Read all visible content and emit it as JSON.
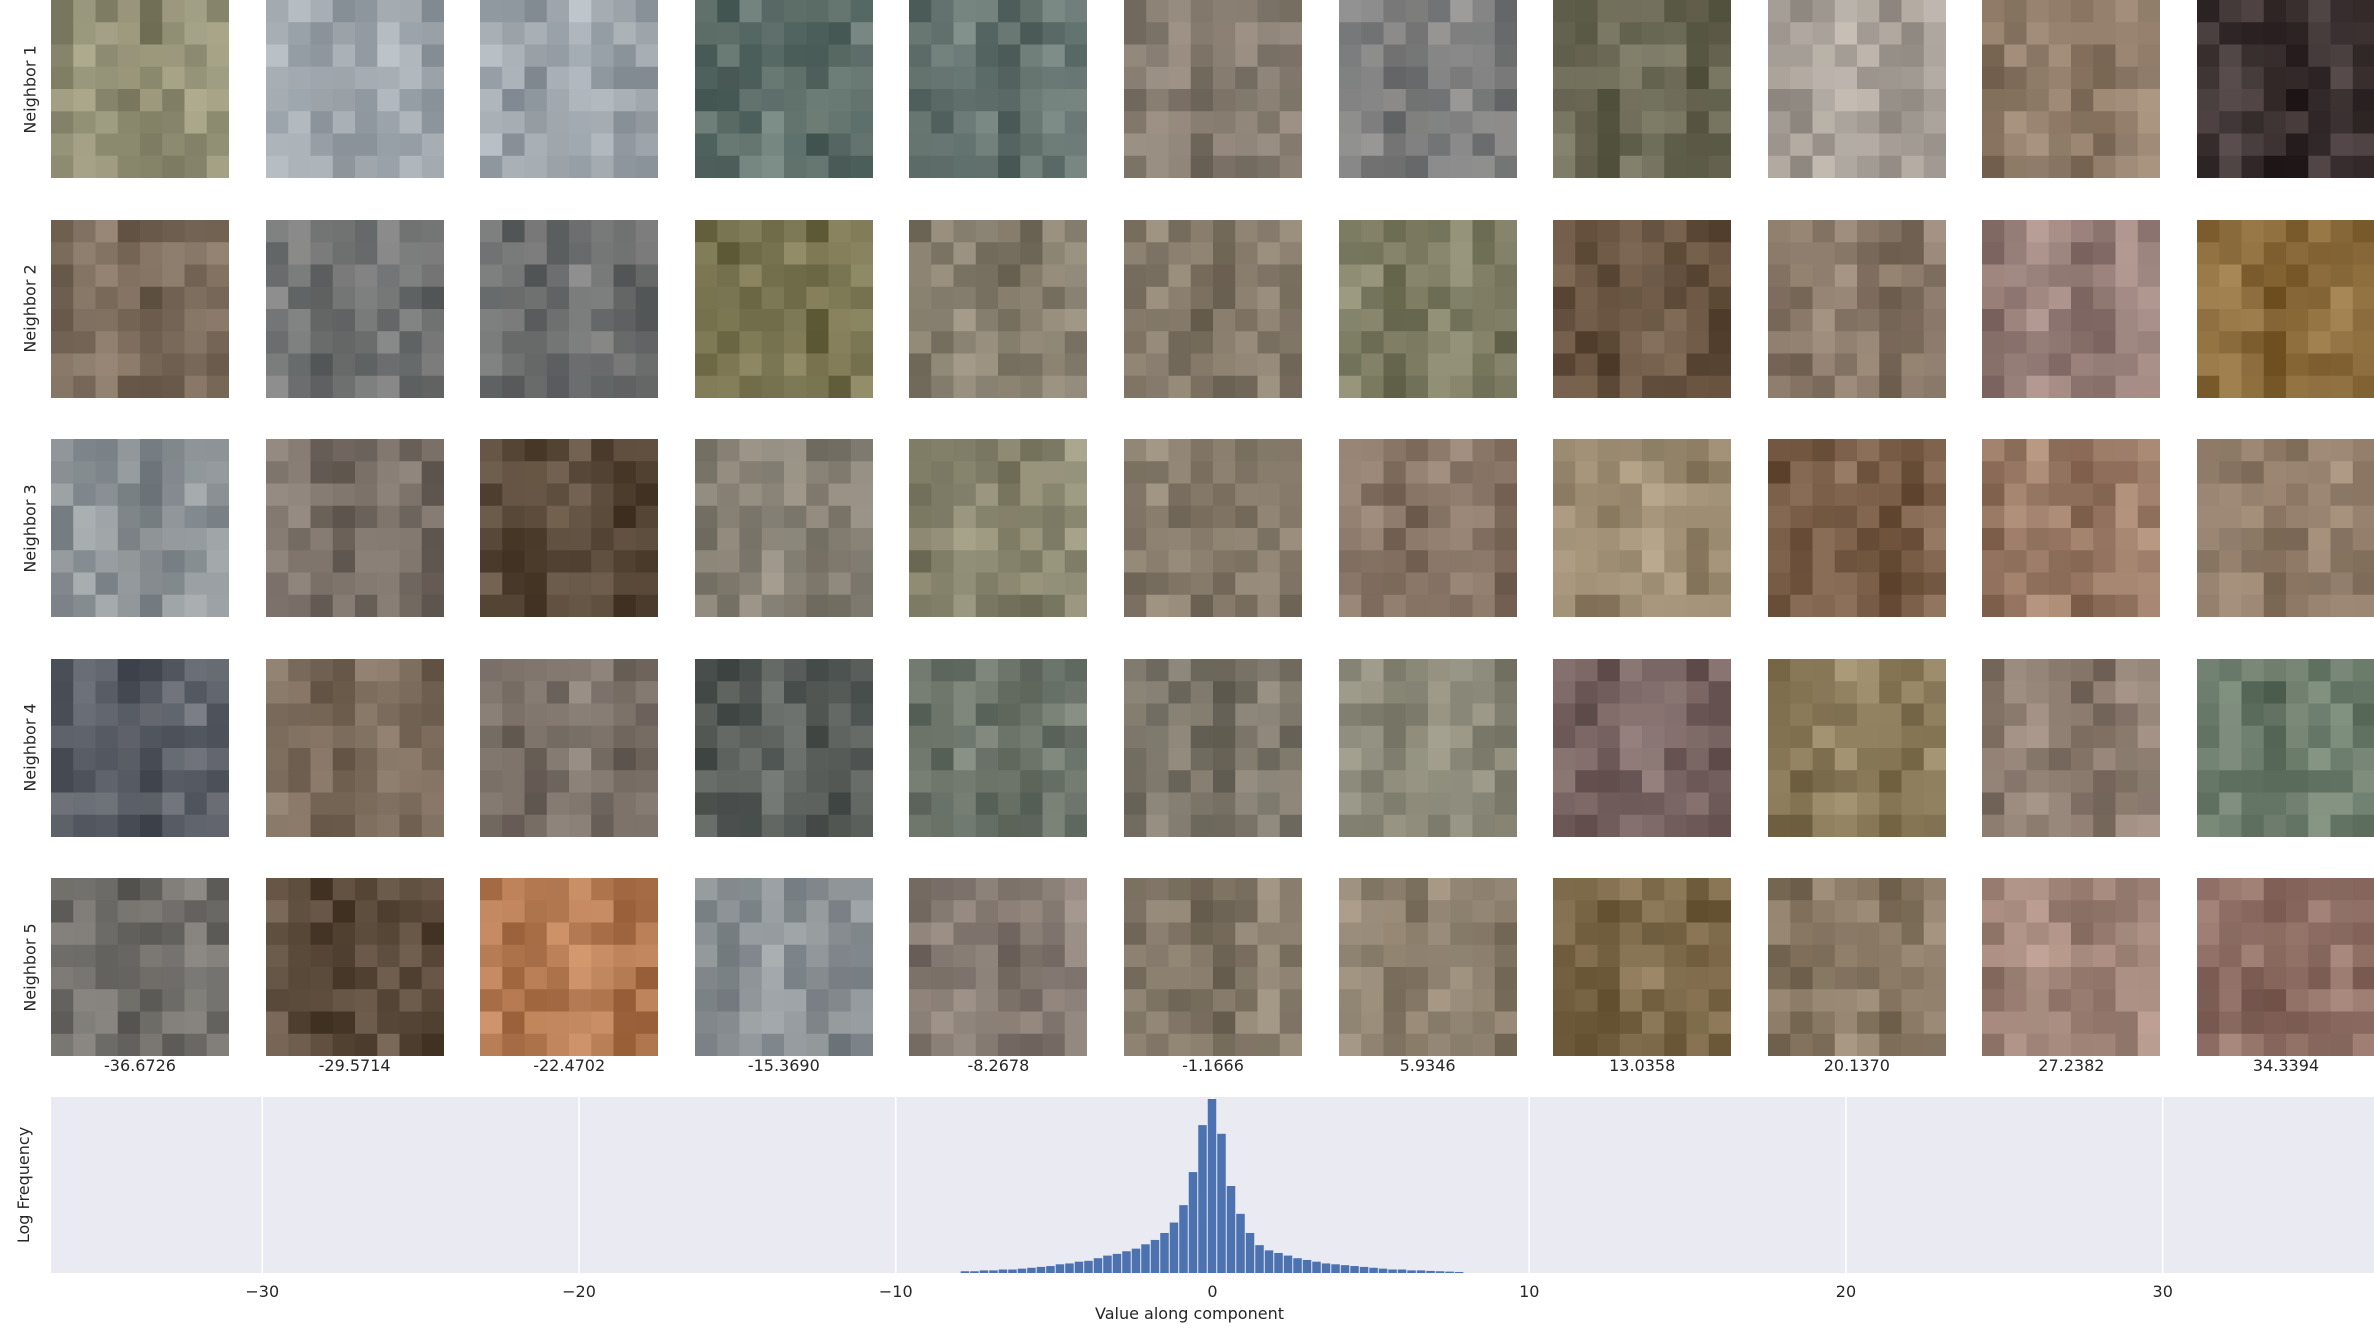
{
  "chart_data": [
    {
      "type": "image_grid",
      "row_labels": [
        "Neighbor 1",
        "Neighbor 2",
        "Neighbor 3",
        "Neighbor 4",
        "Neighbor 5"
      ],
      "column_values": [
        "-36.6726",
        "-29.5714",
        "-22.4702",
        "-15.3690",
        "-8.2678",
        "-1.1666",
        "5.9346",
        "13.0358",
        "20.1370",
        "27.2382",
        "34.3394"
      ],
      "tile_colors": [
        [
          "#8f8d72",
          "#9ea6ac",
          "#9ea6ac",
          "#5e6f6a",
          "#64736f",
          "#857b6f",
          "#808080",
          "#6e6c58",
          "#a9a29a",
          "#8f7b68",
          "#3a3030"
        ],
        [
          "#7d6d5d",
          "#6e7070",
          "#6e7070",
          "#7a7552",
          "#857d6d",
          "#837868",
          "#7e7d64",
          "#6a5643",
          "#8c7b6b",
          "#967e78",
          "#8a6a3a"
        ],
        [
          "#8a9094",
          "#7a7068",
          "#5a4a3a",
          "#8a8478",
          "#8a8770",
          "#837868",
          "#8a7768",
          "#9a8a70",
          "#7a5e48",
          "#9a7a66",
          "#8f7b68"
        ],
        [
          "#5a5e66",
          "#7d6d5d",
          "#7a7068",
          "#5a5f5c",
          "#6a7268",
          "#7a7468",
          "#8a8878",
          "#7a6664",
          "#8a7a5a",
          "#8a7a6e",
          "#6a7a6a"
        ],
        [
          "#6e6c68",
          "#5a4a3a",
          "#b47a52",
          "#8a9094",
          "#857a72",
          "#837868",
          "#8f8270",
          "#7d6a4a",
          "#8a7a66",
          "#a08478",
          "#8a6a60"
        ]
      ]
    },
    {
      "type": "bar",
      "title": "",
      "xlabel": "Value along component",
      "ylabel": "Log Frequency",
      "xlim": [
        -36.67,
        36.67
      ],
      "x_ticks": [
        -30,
        -20,
        -10,
        0,
        10,
        20,
        30
      ],
      "x_tick_labels": [
        "−30",
        "−20",
        "−10",
        "0",
        "10",
        "20",
        "30"
      ],
      "bar_color": "#4c72b0",
      "bin_centers": [
        -7.8,
        -7.5,
        -7.2,
        -6.9,
        -6.6,
        -6.3,
        -6.0,
        -5.7,
        -5.4,
        -5.1,
        -4.8,
        -4.5,
        -4.2,
        -3.9,
        -3.6,
        -3.3,
        -3.0,
        -2.7,
        -2.4,
        -2.1,
        -1.8,
        -1.5,
        -1.2,
        -0.9,
        -0.6,
        -0.3,
        0.0,
        0.3,
        0.6,
        0.9,
        1.2,
        1.5,
        1.8,
        2.1,
        2.4,
        2.7,
        3.0,
        3.3,
        3.6,
        3.9,
        4.2,
        4.5,
        4.8,
        5.1,
        5.4,
        5.7,
        6.0,
        6.3,
        6.6,
        6.9,
        7.2,
        7.5,
        7.8
      ],
      "log_frequency": [
        0.01,
        0.01,
        0.015,
        0.015,
        0.02,
        0.02,
        0.025,
        0.03,
        0.035,
        0.04,
        0.05,
        0.055,
        0.065,
        0.07,
        0.085,
        0.1,
        0.11,
        0.125,
        0.14,
        0.165,
        0.19,
        0.23,
        0.29,
        0.39,
        0.58,
        0.85,
        1.0,
        0.8,
        0.5,
        0.34,
        0.23,
        0.16,
        0.13,
        0.115,
        0.1,
        0.085,
        0.075,
        0.065,
        0.055,
        0.05,
        0.045,
        0.04,
        0.035,
        0.03,
        0.025,
        0.02,
        0.02,
        0.015,
        0.015,
        0.012,
        0.01,
        0.008,
        0.006
      ],
      "grid": true
    }
  ]
}
